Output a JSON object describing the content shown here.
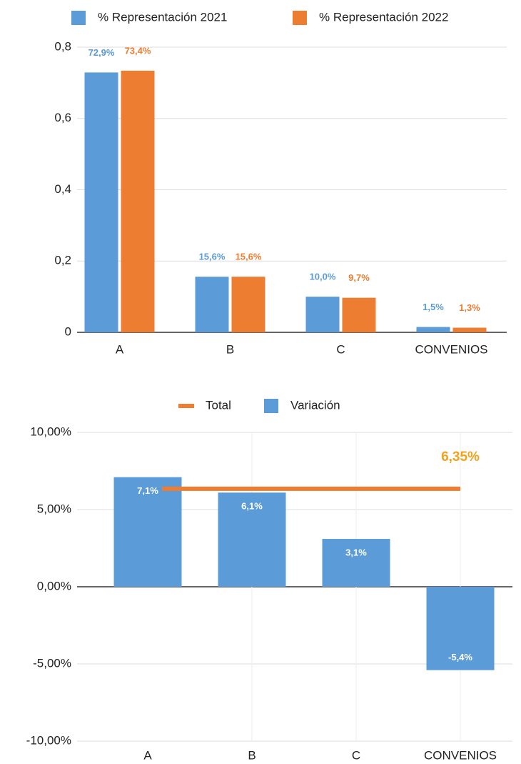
{
  "chart_data": [
    {
      "type": "bar",
      "categories": [
        "A",
        "B",
        "C",
        "CONVENIOS"
      ],
      "series": [
        {
          "name": "% Representación 2021",
          "color": "#5b9bd8",
          "values": [
            0.729,
            0.156,
            0.1,
            0.015
          ],
          "value_labels": [
            "72,9%",
            "15,6%",
            "10,0%",
            "1,5%"
          ]
        },
        {
          "name": "% Representación 2022",
          "color": "#ed7d31",
          "values": [
            0.734,
            0.156,
            0.097,
            0.013
          ],
          "value_labels": [
            "73,4%",
            "15,6%",
            "9,7%",
            "1,3%"
          ]
        }
      ],
      "ylim": [
        0,
        0.8
      ],
      "yticks": [
        0,
        {
          "value": 0.2,
          "label": "0,2"
        },
        {
          "value": 0.4,
          "label": "0,4"
        },
        {
          "value": 0.6,
          "label": "0,6"
        },
        {
          "value": 0.8,
          "label": "0,8"
        }
      ],
      "grid": true,
      "legend": "top"
    },
    {
      "type": "combo",
      "categories": [
        "A",
        "B",
        "C",
        "CONVENIOS"
      ],
      "series": [
        {
          "name": "Total",
          "type": "line",
          "color": "#ed7d31",
          "label_color": "#f4a11b",
          "values": [
            6.35,
            6.35,
            6.35,
            6.35
          ],
          "value_labels": [
            null,
            null,
            null,
            "6,35%"
          ]
        },
        {
          "name": "Variación",
          "type": "bar",
          "color": "#5b9bd8",
          "values": [
            7.1,
            6.1,
            3.1,
            -5.4
          ],
          "value_labels": [
            "7,1%",
            "6,1%",
            "3,1%",
            "-5,4%"
          ]
        }
      ],
      "ylim": [
        -10,
        10
      ],
      "yticks": [
        {
          "value": -10,
          "label": "-10,00%"
        },
        {
          "value": -5,
          "label": "-5,00%"
        },
        {
          "value": 0,
          "label": "0,00%"
        },
        {
          "value": 5,
          "label": "5,00%"
        },
        {
          "value": 10,
          "label": "10,00%"
        }
      ],
      "grid": true,
      "legend": "top"
    }
  ]
}
